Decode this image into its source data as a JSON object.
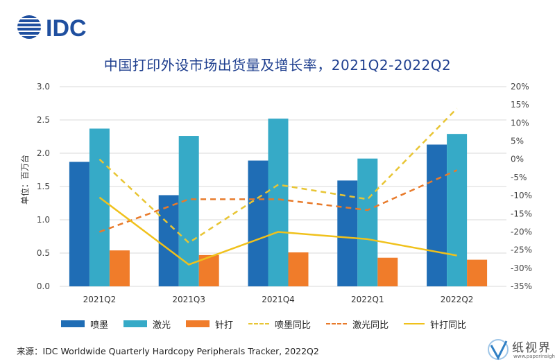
{
  "logo": {
    "text": "IDC",
    "color": "#1f4f9f"
  },
  "title": "中国打印外设市场出货量及增长率，2021Q2-2022Q2",
  "chart_data": {
    "type": "bar",
    "categories": [
      "2021Q2",
      "2021Q3",
      "2021Q4",
      "2022Q1",
      "2022Q2"
    ],
    "ylabel": "单位：百万台",
    "ylim": [
      0,
      3.0
    ],
    "yticks": [
      "3.0",
      "2.5",
      "2.0",
      "1.5",
      "1.0",
      "0.5",
      "0.0"
    ],
    "y2lim": [
      -35,
      20
    ],
    "y2ticks": [
      "20%",
      "15%",
      "10%",
      "5%",
      "0%",
      "-5%",
      "-10%",
      "-15%",
      "-20%",
      "-25%",
      "-30%",
      "-35%"
    ],
    "grid": true,
    "legend_position": "bottom",
    "bar_series": [
      {
        "name": "喷墨",
        "color": "#1f6db5",
        "values": [
          1.87,
          1.37,
          1.89,
          1.59,
          2.13
        ]
      },
      {
        "name": "激光",
        "color": "#36aac7",
        "values": [
          2.37,
          2.26,
          2.52,
          1.92,
          2.29
        ]
      },
      {
        "name": "针打",
        "color": "#f07c2a",
        "values": [
          0.54,
          0.47,
          0.51,
          0.43,
          0.4
        ]
      }
    ],
    "line_series": [
      {
        "name": "喷墨同比",
        "color": "#e8c534",
        "style": "dashed",
        "axis": "right",
        "values": [
          0,
          -23,
          -7,
          -11,
          14
        ]
      },
      {
        "name": "激光同比",
        "color": "#e87a2a",
        "style": "dashed",
        "axis": "right",
        "values": [
          -20,
          -11,
          -11,
          -14,
          -3
        ]
      },
      {
        "name": "针打同比",
        "color": "#f0c11b",
        "style": "solid",
        "axis": "right",
        "values": [
          -10.5,
          -29,
          -20,
          -22,
          -26.5
        ]
      }
    ]
  },
  "source": "来源：IDC Worldwide Quarterly Hardcopy Peripherals Tracker, 2022Q2",
  "watermark": {
    "text": "纸视界",
    "url": "www.paperinsight.net"
  }
}
